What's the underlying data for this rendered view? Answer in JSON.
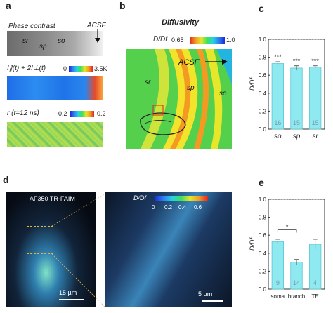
{
  "panels": {
    "a": {
      "label": "a",
      "phase_title": "Phase contrast",
      "acsf": "ACSF",
      "regions": [
        "sr",
        "sp",
        "so"
      ],
      "intensity_title": "I∥(t) + 2I⊥(t)",
      "intensity_min": "0",
      "intensity_max": "3.5K",
      "aniso_title": "r (t=12 ns)",
      "aniso_min": "-0.2",
      "aniso_max": "0.2"
    },
    "b": {
      "label": "b",
      "title": "Diffusivity",
      "scale_label": "D/Df",
      "scale_min": "0.65",
      "scale_max": "1.0",
      "acsf": "ACSF",
      "regions": [
        "sr",
        "sp",
        "so"
      ]
    },
    "d": {
      "label": "d",
      "title": "AF350 TR-FAIM",
      "scale_label": "D/Df",
      "ticks": [
        "0",
        "0.2",
        "0.4",
        "0.6"
      ],
      "scalebar_left": "15 µm",
      "scalebar_right": "5 µm"
    }
  },
  "chart_data": [
    {
      "panel": "c",
      "type": "bar",
      "ylabel": "D/Df",
      "ylim": [
        0,
        1.0
      ],
      "yticks": [
        "0.0",
        "0.2",
        "0.4",
        "0.6",
        "0.8",
        "1.0"
      ],
      "categories": [
        "so",
        "sp",
        "sr"
      ],
      "values": [
        0.73,
        0.68,
        0.69
      ],
      "errors": [
        0.02,
        0.025,
        0.015
      ],
      "n_labels": [
        "16",
        "15",
        "15"
      ],
      "annotations": [
        "***",
        "***",
        "***"
      ],
      "reference_line": 1.0,
      "bar_color": "#8ee9f0"
    },
    {
      "panel": "e",
      "type": "bar",
      "ylabel": "D/Df",
      "ylim": [
        0,
        1.0
      ],
      "yticks": [
        "0.0",
        "0.2",
        "0.4",
        "0.6",
        "0.8",
        "1.0"
      ],
      "categories": [
        "soma",
        "branch",
        "TE"
      ],
      "values": [
        0.53,
        0.3,
        0.5
      ],
      "errors": [
        0.025,
        0.03,
        0.055
      ],
      "n_labels": [
        "9",
        "14",
        "4"
      ],
      "significance": "*",
      "reference_line": 1.0,
      "bar_color": "#8ee9f0"
    }
  ]
}
